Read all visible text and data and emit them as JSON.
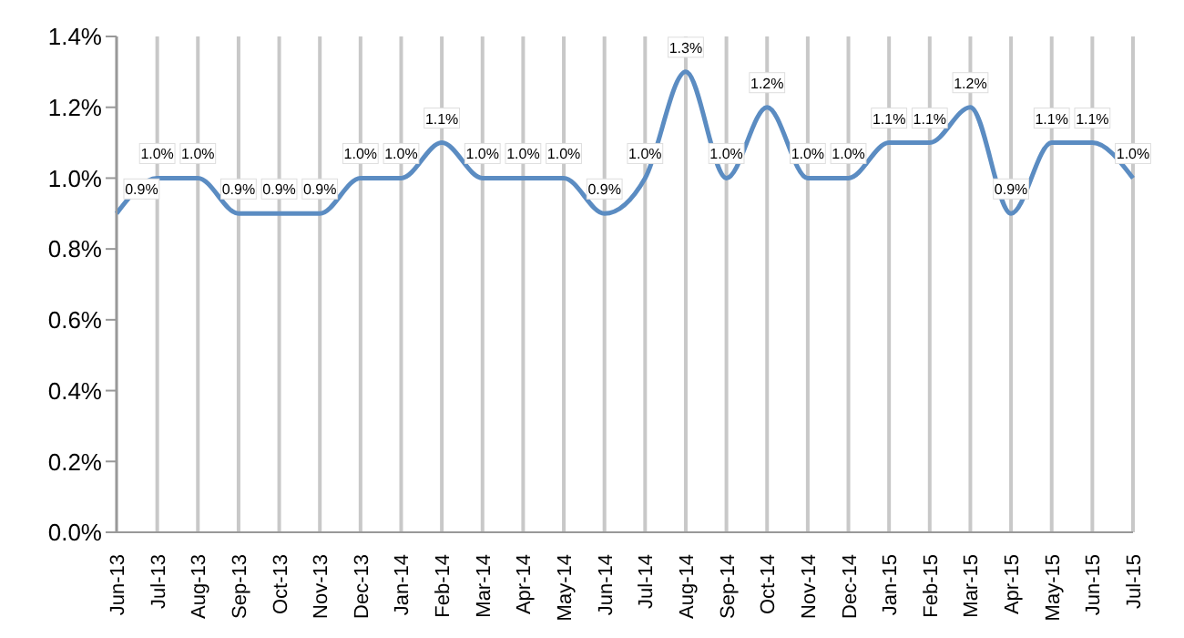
{
  "chart_data": {
    "type": "line",
    "categories": [
      "Jun-13",
      "Jul-13",
      "Aug-13",
      "Sep-13",
      "Oct-13",
      "Nov-13",
      "Dec-13",
      "Jan-14",
      "Feb-14",
      "Mar-14",
      "Apr-14",
      "May-14",
      "Jun-14",
      "Jul-14",
      "Aug-14",
      "Sep-14",
      "Oct-14",
      "Nov-14",
      "Dec-14",
      "Jan-15",
      "Feb-15",
      "Mar-15",
      "Apr-15",
      "May-15",
      "Jun-15",
      "Jul-15"
    ],
    "series": [
      {
        "color": "#5b8cc2",
        "values": [
          0.9,
          1.0,
          1.0,
          0.9,
          0.9,
          0.9,
          1.0,
          1.0,
          1.1,
          1.0,
          1.0,
          1.0,
          0.9,
          1.0,
          1.3,
          1.0,
          1.2,
          1.0,
          1.0,
          1.1,
          1.1,
          1.2,
          0.9,
          1.1,
          1.1,
          1.0
        ],
        "value_labels": [
          "0.9%",
          "1.0%",
          "1.0%",
          "0.9%",
          "0.9%",
          "0.9%",
          "1.0%",
          "1.0%",
          "1.1%",
          "1.0%",
          "1.0%",
          "1.0%",
          "0.9%",
          "1.0%",
          "1.3%",
          "1.0%",
          "1.2%",
          "1.0%",
          "1.0%",
          "1.1%",
          "1.1%",
          "1.2%",
          "0.9%",
          "1.1%",
          "1.1%",
          "1.0%"
        ]
      }
    ],
    "ylim": [
      0,
      1.4
    ],
    "yticks": [
      {
        "value": 0,
        "label": "0.0%"
      },
      {
        "value": 0.2,
        "label": "0.2%"
      },
      {
        "value": 0.4,
        "label": "0.4%"
      },
      {
        "value": 0.6,
        "label": "0.6%"
      },
      {
        "value": 0.8,
        "label": "0.8%"
      },
      {
        "value": 1.0,
        "label": "1.0%"
      },
      {
        "value": 1.2,
        "label": "1.2%"
      },
      {
        "value": 1.4,
        "label": "1.4%"
      }
    ],
    "grid": "x",
    "legend": false,
    "marker": "none",
    "line_style": "solid"
  }
}
